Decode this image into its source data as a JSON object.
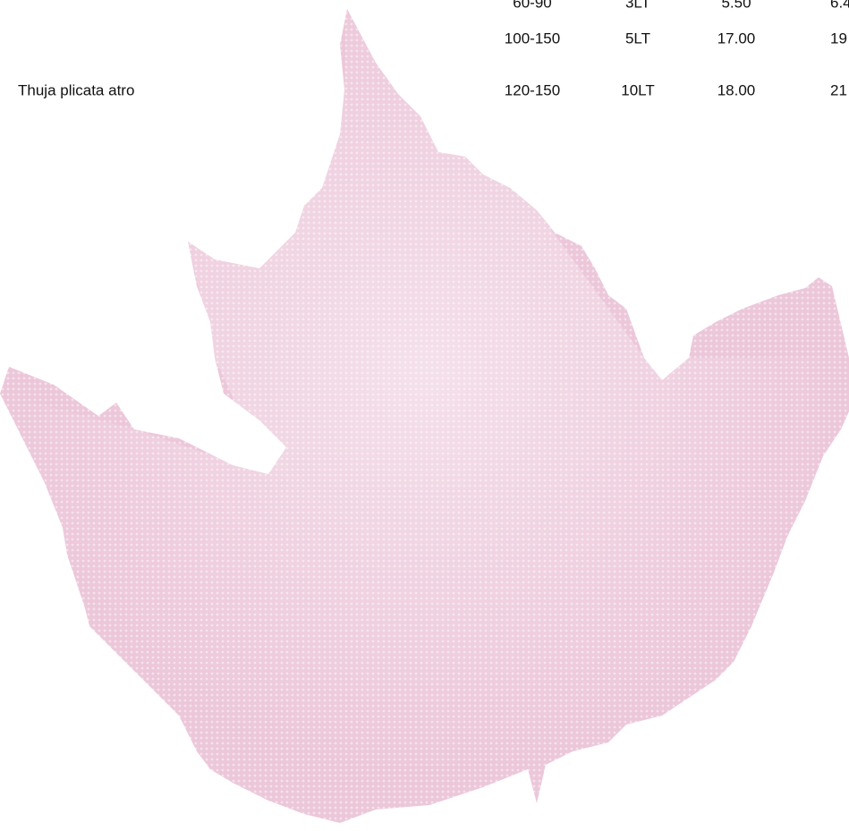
{
  "table": {
    "rows": [
      {
        "cells": [
          "60-90",
          "3LT",
          "5.50",
          "6.4"
        ]
      },
      {
        "cells": [
          "100-150",
          "5LT",
          "17.00",
          "19"
        ]
      },
      {
        "name": "Thuja plicata atro",
        "cells": [
          "120-150",
          "10LT",
          "18.00",
          "21"
        ]
      }
    ]
  }
}
